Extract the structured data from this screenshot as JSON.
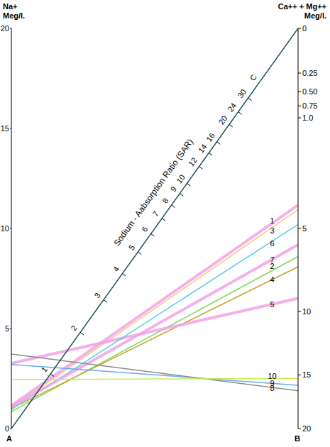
{
  "chart_data": {
    "type": "nomogram",
    "ylabel": [
      "Na+",
      "Meg/l."
    ],
    "y2label": [
      "Ca++ + Mg++",
      "Meg/l."
    ],
    "ylim": [
      0,
      20
    ],
    "yticks": [
      0,
      5,
      10,
      15,
      20
    ],
    "y2lim": [
      0,
      20
    ],
    "y2ticks": [
      0,
      0.25,
      {
        "value": 0.5,
        "label": "0.50"
      },
      0.75,
      {
        "value": 1,
        "label": "1.0"
      },
      5,
      10,
      15,
      20
    ],
    "grid": false,
    "sar_scale": {
      "label": "Sodium - Aabsorption Ratio (SAR)",
      "ticks": [
        1,
        2,
        3,
        4,
        5,
        6,
        7,
        8,
        9,
        10,
        12,
        14,
        16,
        20,
        24,
        30
      ],
      "end_label": "C"
    },
    "corner_labels": [
      "A",
      "B"
    ],
    "series": [
      {
        "name": "1",
        "color": "#f2a2e6",
        "na": 1.15,
        "ca_mg": 3.9
      },
      {
        "name": "2",
        "color": "#82d95a",
        "na": 0.85,
        "ca_mg": 6.5
      },
      {
        "name": "3",
        "color": "#f7c886",
        "na": 1.05,
        "ca_mg": 4.1
      },
      {
        "name": "4",
        "color": "#c4a634",
        "na": 1.0,
        "ca_mg": 7.1
      },
      {
        "name": "5",
        "color": "#f2a2e6",
        "na": 3.26,
        "ca_mg": 9.1
      },
      {
        "name": "6",
        "color": "#5ccde6",
        "na": 0.95,
        "ca_mg": 4.8
      },
      {
        "name": "7",
        "color": "#f2a2e6",
        "na": 1.1,
        "ca_mg": 5.85
      },
      {
        "name": "8",
        "color": "#8c8c8c",
        "na": 3.72,
        "ca_mg": 16.4
      },
      {
        "name": "9",
        "color": "#6aa8ee",
        "na": 3.2,
        "ca_mg": 15.9
      },
      {
        "name": "10",
        "color": "#c6ee52",
        "na": 2.45,
        "ca_mg": 15.3
      }
    ]
  }
}
